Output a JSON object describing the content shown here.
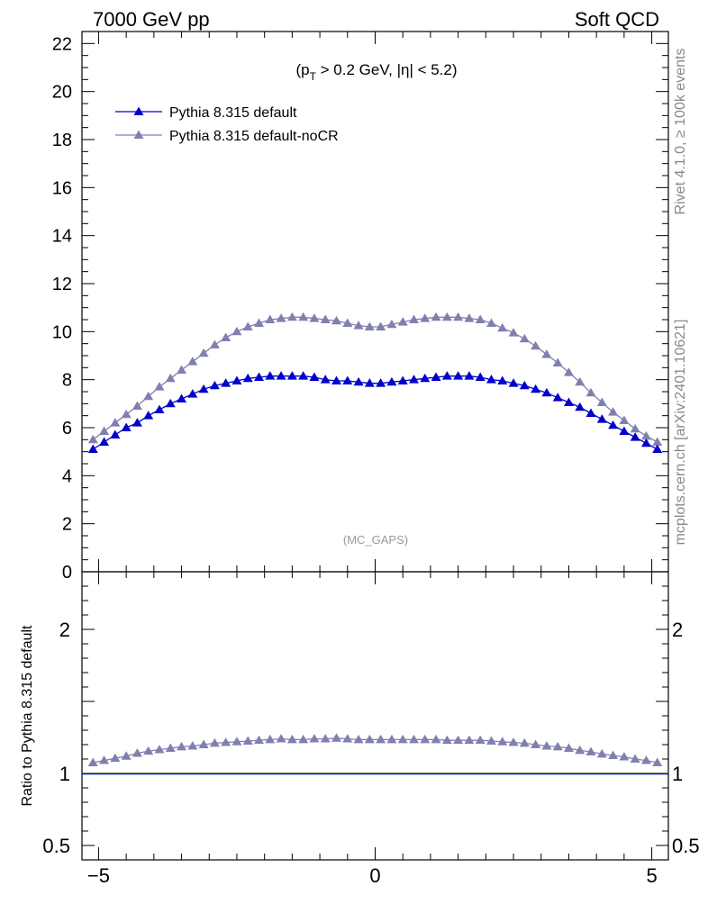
{
  "header": {
    "left": "7000 GeV pp",
    "right": "Soft QCD"
  },
  "cut_label": {
    "prefix": "(p",
    "sub": "T",
    "rest": " > 0.2 GeV, |η| < 5.2)"
  },
  "watermark": "(MC_GAPS)",
  "side_labels": {
    "rivet": "Rivet 4.1.0, ≥ 100k events",
    "mcplots": "mcplots.cern.ch [arXiv:2401.10621]"
  },
  "colors": {
    "series1": "#0000cc",
    "series2": "#8080b0",
    "ref_line": "#2a6a2a"
  },
  "chart_data": [
    {
      "type": "line",
      "panel": "main",
      "xlim": [
        -5.3,
        5.3
      ],
      "ylim": [
        0,
        22.5
      ],
      "ylabel": "",
      "xlabel": "",
      "y_ticks": [
        "0",
        "2",
        "4",
        "6",
        "8",
        "10",
        "12",
        "14",
        "16",
        "18",
        "20",
        "22"
      ],
      "legend": {
        "placement": "top-left"
      },
      "x": [
        -5.1,
        -4.9,
        -4.7,
        -4.5,
        -4.3,
        -4.1,
        -3.9,
        -3.7,
        -3.5,
        -3.3,
        -3.1,
        -2.9,
        -2.7,
        -2.5,
        -2.3,
        -2.1,
        -1.9,
        -1.7,
        -1.5,
        -1.3,
        -1.1,
        -0.9,
        -0.7,
        -0.5,
        -0.3,
        -0.1,
        0.1,
        0.3,
        0.5,
        0.7,
        0.9,
        1.1,
        1.3,
        1.5,
        1.7,
        1.9,
        2.1,
        2.3,
        2.5,
        2.7,
        2.9,
        3.1,
        3.3,
        3.5,
        3.7,
        3.9,
        4.1,
        4.3,
        4.5,
        4.7,
        4.9,
        5.1
      ],
      "series": [
        {
          "name": "Pythia 8.315 default",
          "color": "#0000cc",
          "values": [
            5.1,
            5.4,
            5.7,
            6.0,
            6.2,
            6.5,
            6.75,
            7.0,
            7.2,
            7.4,
            7.6,
            7.75,
            7.85,
            7.95,
            8.05,
            8.1,
            8.15,
            8.15,
            8.15,
            8.15,
            8.1,
            8.0,
            7.95,
            7.95,
            7.9,
            7.85,
            7.85,
            7.9,
            7.95,
            8.0,
            8.05,
            8.1,
            8.15,
            8.15,
            8.15,
            8.1,
            8.0,
            7.95,
            7.85,
            7.75,
            7.6,
            7.45,
            7.25,
            7.05,
            6.85,
            6.6,
            6.35,
            6.1,
            5.85,
            5.6,
            5.35,
            5.1
          ]
        },
        {
          "name": "Pythia 8.315 default-noCR",
          "color": "#8080b0",
          "values": [
            5.5,
            5.85,
            6.2,
            6.55,
            6.9,
            7.3,
            7.7,
            8.05,
            8.4,
            8.75,
            9.1,
            9.45,
            9.75,
            10.0,
            10.2,
            10.35,
            10.5,
            10.55,
            10.6,
            10.6,
            10.55,
            10.5,
            10.45,
            10.35,
            10.25,
            10.2,
            10.2,
            10.3,
            10.4,
            10.5,
            10.55,
            10.6,
            10.6,
            10.6,
            10.55,
            10.5,
            10.35,
            10.15,
            9.95,
            9.7,
            9.4,
            9.05,
            8.7,
            8.3,
            7.9,
            7.45,
            7.05,
            6.65,
            6.3,
            5.95,
            5.65,
            5.4
          ]
        }
      ]
    },
    {
      "type": "line",
      "panel": "ratio",
      "xlim": [
        -5.3,
        5.3
      ],
      "ylim": [
        0.4,
        2.4
      ],
      "ylabel": "Ratio to Pythia 8.315 default",
      "x_ticks": [
        "−5",
        "0",
        "5"
      ],
      "y_ticks": [
        "0.5",
        "1",
        "2"
      ],
      "reference_line": 1,
      "x": [
        -5.1,
        -4.9,
        -4.7,
        -4.5,
        -4.3,
        -4.1,
        -3.9,
        -3.7,
        -3.5,
        -3.3,
        -3.1,
        -2.9,
        -2.7,
        -2.5,
        -2.3,
        -2.1,
        -1.9,
        -1.7,
        -1.5,
        -1.3,
        -1.1,
        -0.9,
        -0.7,
        -0.5,
        -0.3,
        -0.1,
        0.1,
        0.3,
        0.5,
        0.7,
        0.9,
        1.1,
        1.3,
        1.5,
        1.7,
        1.9,
        2.1,
        2.3,
        2.5,
        2.7,
        2.9,
        3.1,
        3.3,
        3.5,
        3.7,
        3.9,
        4.1,
        4.3,
        4.5,
        4.7,
        4.9,
        5.1
      ],
      "series": [
        {
          "name": "Pythia 8.315 default-noCR",
          "color": "#8080b0",
          "values": [
            1.075,
            1.09,
            1.105,
            1.12,
            1.14,
            1.155,
            1.165,
            1.175,
            1.185,
            1.19,
            1.2,
            1.21,
            1.215,
            1.22,
            1.225,
            1.23,
            1.235,
            1.24,
            1.235,
            1.235,
            1.24,
            1.24,
            1.245,
            1.24,
            1.235,
            1.235,
            1.235,
            1.235,
            1.235,
            1.235,
            1.235,
            1.235,
            1.23,
            1.23,
            1.23,
            1.23,
            1.225,
            1.22,
            1.215,
            1.21,
            1.2,
            1.19,
            1.185,
            1.175,
            1.16,
            1.15,
            1.135,
            1.125,
            1.115,
            1.1,
            1.09,
            1.075
          ]
        }
      ]
    }
  ]
}
